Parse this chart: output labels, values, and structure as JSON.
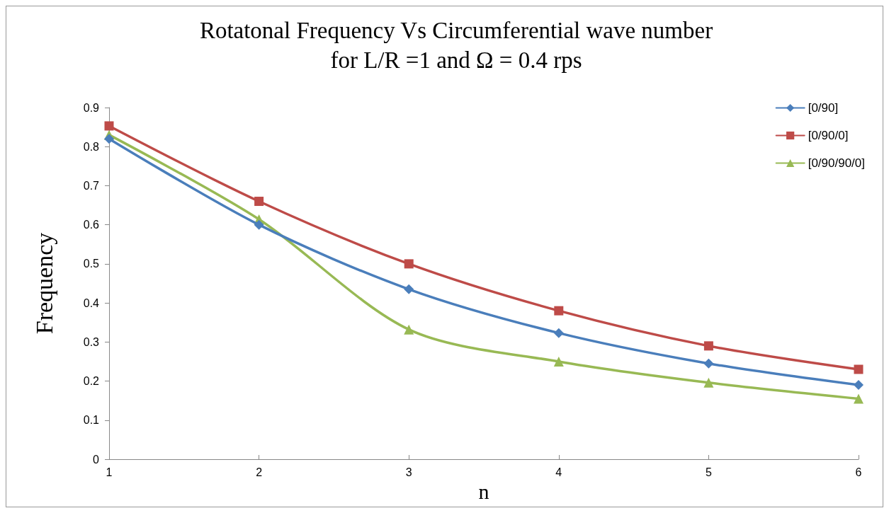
{
  "chart_data": {
    "type": "line",
    "title": "Rotatonal Frequency Vs Circumferential wave number\nfor L/R =1 and Ω = 0.4 rps",
    "xlabel": "n",
    "ylabel": "Frequency",
    "x": [
      1,
      2,
      3,
      4,
      5,
      6
    ],
    "series": [
      {
        "name": "[0/90]",
        "color": "#4a7ebb",
        "marker": "diamond",
        "values": [
          0.82,
          0.6,
          0.435,
          0.323,
          0.245,
          0.19
        ]
      },
      {
        "name": "[0/90/0]",
        "color": "#be4b48",
        "marker": "square",
        "values": [
          0.853,
          0.66,
          0.5,
          0.38,
          0.29,
          0.23
        ]
      },
      {
        "name": "[0/90/90/0]",
        "color": "#98b954",
        "marker": "triangle",
        "values": [
          0.83,
          0.614,
          0.332,
          0.25,
          0.196,
          0.155
        ]
      }
    ],
    "xlim": [
      1,
      6
    ],
    "xticks": [
      1,
      2,
      3,
      4,
      5,
      6
    ],
    "ylim": [
      0,
      0.9
    ],
    "yticks": [
      0,
      0.1,
      0.2,
      0.3,
      0.4,
      0.5,
      0.6,
      0.7,
      0.8,
      0.9
    ],
    "grid": false,
    "legend": "top right",
    "line_style": "solid"
  }
}
